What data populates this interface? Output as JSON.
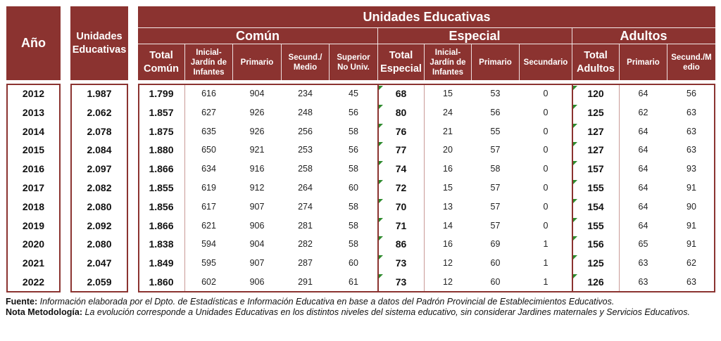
{
  "header": {
    "anio": "Año",
    "unidades_left_1": "Unidades",
    "unidades_left_2": "Educativas",
    "main_title": "Unidades Educativas",
    "groups": [
      "Común",
      "Especial",
      "Adultos"
    ],
    "columns": [
      [
        "Total",
        "Común"
      ],
      [
        "Inicial-",
        "Jardín de",
        "Infantes"
      ],
      [
        "Primario"
      ],
      [
        "Secund./",
        "Medio"
      ],
      [
        "Superior",
        "No Univ."
      ],
      [
        "Total",
        "Especial"
      ],
      [
        "Inicial-",
        "Jardín de",
        "Infantes"
      ],
      [
        "Primario"
      ],
      [
        "Secundario"
      ],
      [
        "Total",
        "Adultos"
      ],
      [
        "Primario"
      ],
      [
        "Secund./M",
        "edio"
      ]
    ]
  },
  "rows": [
    [
      "2012",
      "1.987",
      "1.799",
      "616",
      "904",
      "234",
      "45",
      "68",
      "15",
      "53",
      "0",
      "120",
      "64",
      "56"
    ],
    [
      "2013",
      "2.062",
      "1.857",
      "627",
      "926",
      "248",
      "56",
      "80",
      "24",
      "56",
      "0",
      "125",
      "62",
      "63"
    ],
    [
      "2014",
      "2.078",
      "1.875",
      "635",
      "926",
      "256",
      "58",
      "76",
      "21",
      "55",
      "0",
      "127",
      "64",
      "63"
    ],
    [
      "2015",
      "2.084",
      "1.880",
      "650",
      "921",
      "253",
      "56",
      "77",
      "20",
      "57",
      "0",
      "127",
      "64",
      "63"
    ],
    [
      "2016",
      "2.097",
      "1.866",
      "634",
      "916",
      "258",
      "58",
      "74",
      "16",
      "58",
      "0",
      "157",
      "64",
      "93"
    ],
    [
      "2017",
      "2.082",
      "1.855",
      "619",
      "912",
      "264",
      "60",
      "72",
      "15",
      "57",
      "0",
      "155",
      "64",
      "91"
    ],
    [
      "2018",
      "2.080",
      "1.856",
      "617",
      "907",
      "274",
      "58",
      "70",
      "13",
      "57",
      "0",
      "154",
      "64",
      "90"
    ],
    [
      "2019",
      "2.092",
      "1.866",
      "621",
      "906",
      "281",
      "58",
      "71",
      "14",
      "57",
      "0",
      "155",
      "64",
      "91"
    ],
    [
      "2020",
      "2.080",
      "1.838",
      "594",
      "904",
      "282",
      "58",
      "86",
      "16",
      "69",
      "1",
      "156",
      "65",
      "91"
    ],
    [
      "2021",
      "2.047",
      "1.849",
      "595",
      "907",
      "287",
      "60",
      "73",
      "12",
      "60",
      "1",
      "125",
      "63",
      "62"
    ],
    [
      "2022",
      "2.059",
      "1.860",
      "602",
      "906",
      "291",
      "61",
      "73",
      "12",
      "60",
      "1",
      "126",
      "63",
      "63"
    ]
  ],
  "notes": {
    "fuente_label": "Fuente:",
    "fuente_text": " Información elaborada por el Dpto. de Estadísticas e Información Educativa en base a datos del Padrón Provincial de Establecimientos Educativos.",
    "nota_label": "Nota Metodología:",
    "nota_text": " La evolución corresponde  a Unidades Educativas en los distintos niveles del sistema educativo, sin considerar Jardines maternales y Servicios Educativos."
  },
  "colors": {
    "header": "#8b3330",
    "marker": "#2e8b2e",
    "background": "#ffffff"
  }
}
